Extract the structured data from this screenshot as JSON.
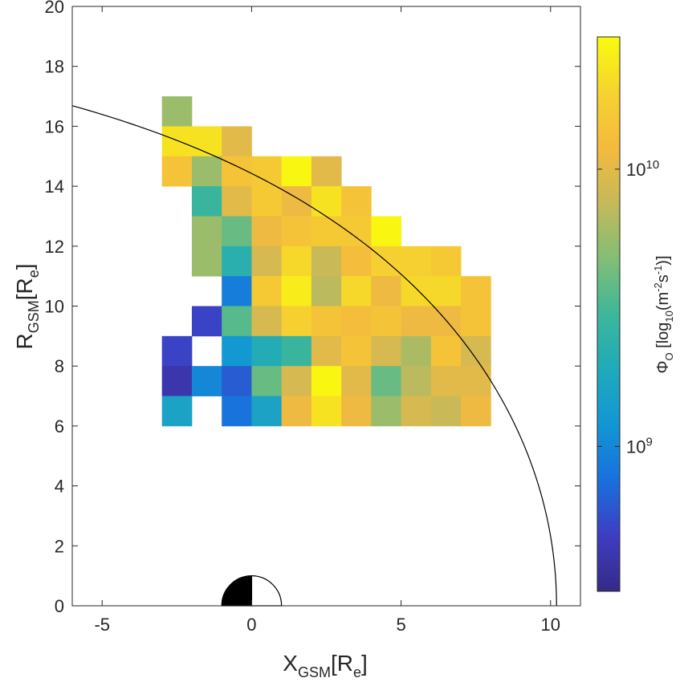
{
  "chart_data": {
    "type": "heatmap",
    "xlabel": {
      "main": "X",
      "sub": "GSM",
      "unit": "[R",
      "unit_sub": "e",
      "close": "]"
    },
    "ylabel": {
      "main": "R",
      "sub": "GSM",
      "unit": "[R",
      "unit_sub": "e",
      "close": "]"
    },
    "xlim": [
      -6,
      11
    ],
    "ylim": [
      0,
      20
    ],
    "xticks": [
      -5,
      0,
      5,
      10
    ],
    "xtick_labels": [
      "-5",
      "0",
      "5",
      "10"
    ],
    "yticks": [
      0,
      2,
      4,
      6,
      8,
      10,
      12,
      14,
      16,
      18,
      20
    ],
    "ytick_labels": [
      "0",
      "2",
      "4",
      "6",
      "8",
      "10",
      "12",
      "14",
      "16",
      "18",
      "20"
    ],
    "bin_size": 1,
    "colorbar": {
      "label": {
        "main": "Φ",
        "sub": "O",
        "rest": " [log",
        "rest_sub": "10",
        "rest2": "(m",
        "sup1": "-2",
        "rest3": "s",
        "sup2": "-1",
        "close": ")]"
      },
      "scale": "log",
      "range": [
        300000000,
        30000000000
      ],
      "ticks": [
        {
          "value": 1000000000,
          "base": "10",
          "exp": "9"
        },
        {
          "value": 10000000000,
          "base": "10",
          "exp": "10"
        }
      ],
      "colormap": "parula"
    },
    "cells_note": "x and y are lower-left corners of 1 Re bins; value is log10 of oxygen flux",
    "cells": [
      {
        "x": -3,
        "y": 16,
        "v": 9.75
      },
      {
        "x": -3,
        "y": 15,
        "v": 10.35
      },
      {
        "x": -2,
        "y": 15,
        "v": 10.35
      },
      {
        "x": -1,
        "y": 15,
        "v": 10.0
      },
      {
        "x": -3,
        "y": 14,
        "v": 10.15
      },
      {
        "x": -2,
        "y": 14,
        "v": 9.75
      },
      {
        "x": -1,
        "y": 14,
        "v": 10.15
      },
      {
        "x": 0,
        "y": 14,
        "v": 10.2
      },
      {
        "x": 1,
        "y": 14,
        "v": 10.45
      },
      {
        "x": 2,
        "y": 14,
        "v": 10.0
      },
      {
        "x": -2,
        "y": 13,
        "v": 9.45
      },
      {
        "x": -1,
        "y": 13,
        "v": 10.0
      },
      {
        "x": 0,
        "y": 13,
        "v": 10.2
      },
      {
        "x": 1,
        "y": 13,
        "v": 10.05
      },
      {
        "x": 2,
        "y": 13,
        "v": 10.35
      },
      {
        "x": 3,
        "y": 13,
        "v": 10.15
      },
      {
        "x": -2,
        "y": 12,
        "v": 9.75
      },
      {
        "x": -1,
        "y": 12,
        "v": 9.6
      },
      {
        "x": 0,
        "y": 12,
        "v": 10.05
      },
      {
        "x": 1,
        "y": 12,
        "v": 10.15
      },
      {
        "x": 2,
        "y": 12,
        "v": 10.2
      },
      {
        "x": 3,
        "y": 12,
        "v": 10.2
      },
      {
        "x": 4,
        "y": 12,
        "v": 10.45
      },
      {
        "x": -2,
        "y": 11,
        "v": 9.75
      },
      {
        "x": -1,
        "y": 11,
        "v": 9.35
      },
      {
        "x": 0,
        "y": 11,
        "v": 9.95
      },
      {
        "x": 1,
        "y": 11,
        "v": 10.3
      },
      {
        "x": 2,
        "y": 11,
        "v": 9.9
      },
      {
        "x": 3,
        "y": 11,
        "v": 10.1
      },
      {
        "x": 4,
        "y": 11,
        "v": 10.25
      },
      {
        "x": 5,
        "y": 11,
        "v": 10.25
      },
      {
        "x": 6,
        "y": 11,
        "v": 10.2
      },
      {
        "x": -1,
        "y": 10,
        "v": 8.95
      },
      {
        "x": 0,
        "y": 10,
        "v": 10.2
      },
      {
        "x": 1,
        "y": 10,
        "v": 10.4
      },
      {
        "x": 2,
        "y": 10,
        "v": 9.85
      },
      {
        "x": 3,
        "y": 10,
        "v": 10.3
      },
      {
        "x": 4,
        "y": 10,
        "v": 10.05
      },
      {
        "x": 5,
        "y": 10,
        "v": 10.3
      },
      {
        "x": 6,
        "y": 10,
        "v": 10.3
      },
      {
        "x": 7,
        "y": 10,
        "v": 10.15
      },
      {
        "x": -2,
        "y": 9,
        "v": 8.7
      },
      {
        "x": -1,
        "y": 9,
        "v": 9.55
      },
      {
        "x": 0,
        "y": 9,
        "v": 9.95
      },
      {
        "x": 1,
        "y": 9,
        "v": 10.25
      },
      {
        "x": 2,
        "y": 9,
        "v": 10.15
      },
      {
        "x": 3,
        "y": 9,
        "v": 10.1
      },
      {
        "x": 4,
        "y": 9,
        "v": 10.15
      },
      {
        "x": 5,
        "y": 9,
        "v": 10.05
      },
      {
        "x": 6,
        "y": 9,
        "v": 10.05
      },
      {
        "x": 7,
        "y": 9,
        "v": 10.15
      },
      {
        "x": -3,
        "y": 8,
        "v": 8.7
      },
      {
        "x": -1,
        "y": 8,
        "v": 9.1
      },
      {
        "x": 0,
        "y": 8,
        "v": 9.3
      },
      {
        "x": 1,
        "y": 8,
        "v": 9.45
      },
      {
        "x": 2,
        "y": 8,
        "v": 10.0
      },
      {
        "x": 3,
        "y": 8,
        "v": 10.15
      },
      {
        "x": 4,
        "y": 8,
        "v": 9.95
      },
      {
        "x": 5,
        "y": 8,
        "v": 9.8
      },
      {
        "x": 6,
        "y": 8,
        "v": 10.15
      },
      {
        "x": 7,
        "y": 8,
        "v": 9.95
      },
      {
        "x": -3,
        "y": 7,
        "v": 8.6
      },
      {
        "x": -2,
        "y": 7,
        "v": 9.0
      },
      {
        "x": -1,
        "y": 7,
        "v": 8.8
      },
      {
        "x": 0,
        "y": 7,
        "v": 9.6
      },
      {
        "x": 1,
        "y": 7,
        "v": 9.95
      },
      {
        "x": 2,
        "y": 7,
        "v": 10.45
      },
      {
        "x": 3,
        "y": 7,
        "v": 10.0
      },
      {
        "x": 4,
        "y": 7,
        "v": 9.6
      },
      {
        "x": 5,
        "y": 7,
        "v": 9.85
      },
      {
        "x": 6,
        "y": 7,
        "v": 10.0
      },
      {
        "x": 7,
        "y": 7,
        "v": 10.0
      },
      {
        "x": -3,
        "y": 6,
        "v": 9.2
      },
      {
        "x": -1,
        "y": 6,
        "v": 8.9
      },
      {
        "x": 0,
        "y": 6,
        "v": 9.2
      },
      {
        "x": 1,
        "y": 6,
        "v": 10.05
      },
      {
        "x": 2,
        "y": 6,
        "v": 10.35
      },
      {
        "x": 3,
        "y": 6,
        "v": 10.05
      },
      {
        "x": 4,
        "y": 6,
        "v": 9.75
      },
      {
        "x": 5,
        "y": 6,
        "v": 9.95
      },
      {
        "x": 6,
        "y": 6,
        "v": 9.9
      },
      {
        "x": 7,
        "y": 6,
        "v": 10.05
      }
    ],
    "boundary_curve": {
      "type": "magnetopause"
    },
    "earth_marker": {
      "radius": 1,
      "night_side": "black",
      "day_side": "white"
    }
  },
  "colors": {
    "parula": [
      "#352a87",
      "#3e3dc2",
      "#1970dd",
      "#1296d4",
      "#20aaba",
      "#3db79a",
      "#82be75",
      "#c5b95a",
      "#f4ba3e",
      "#f6d32e",
      "#f9fb0e"
    ],
    "axis": "#262626"
  }
}
